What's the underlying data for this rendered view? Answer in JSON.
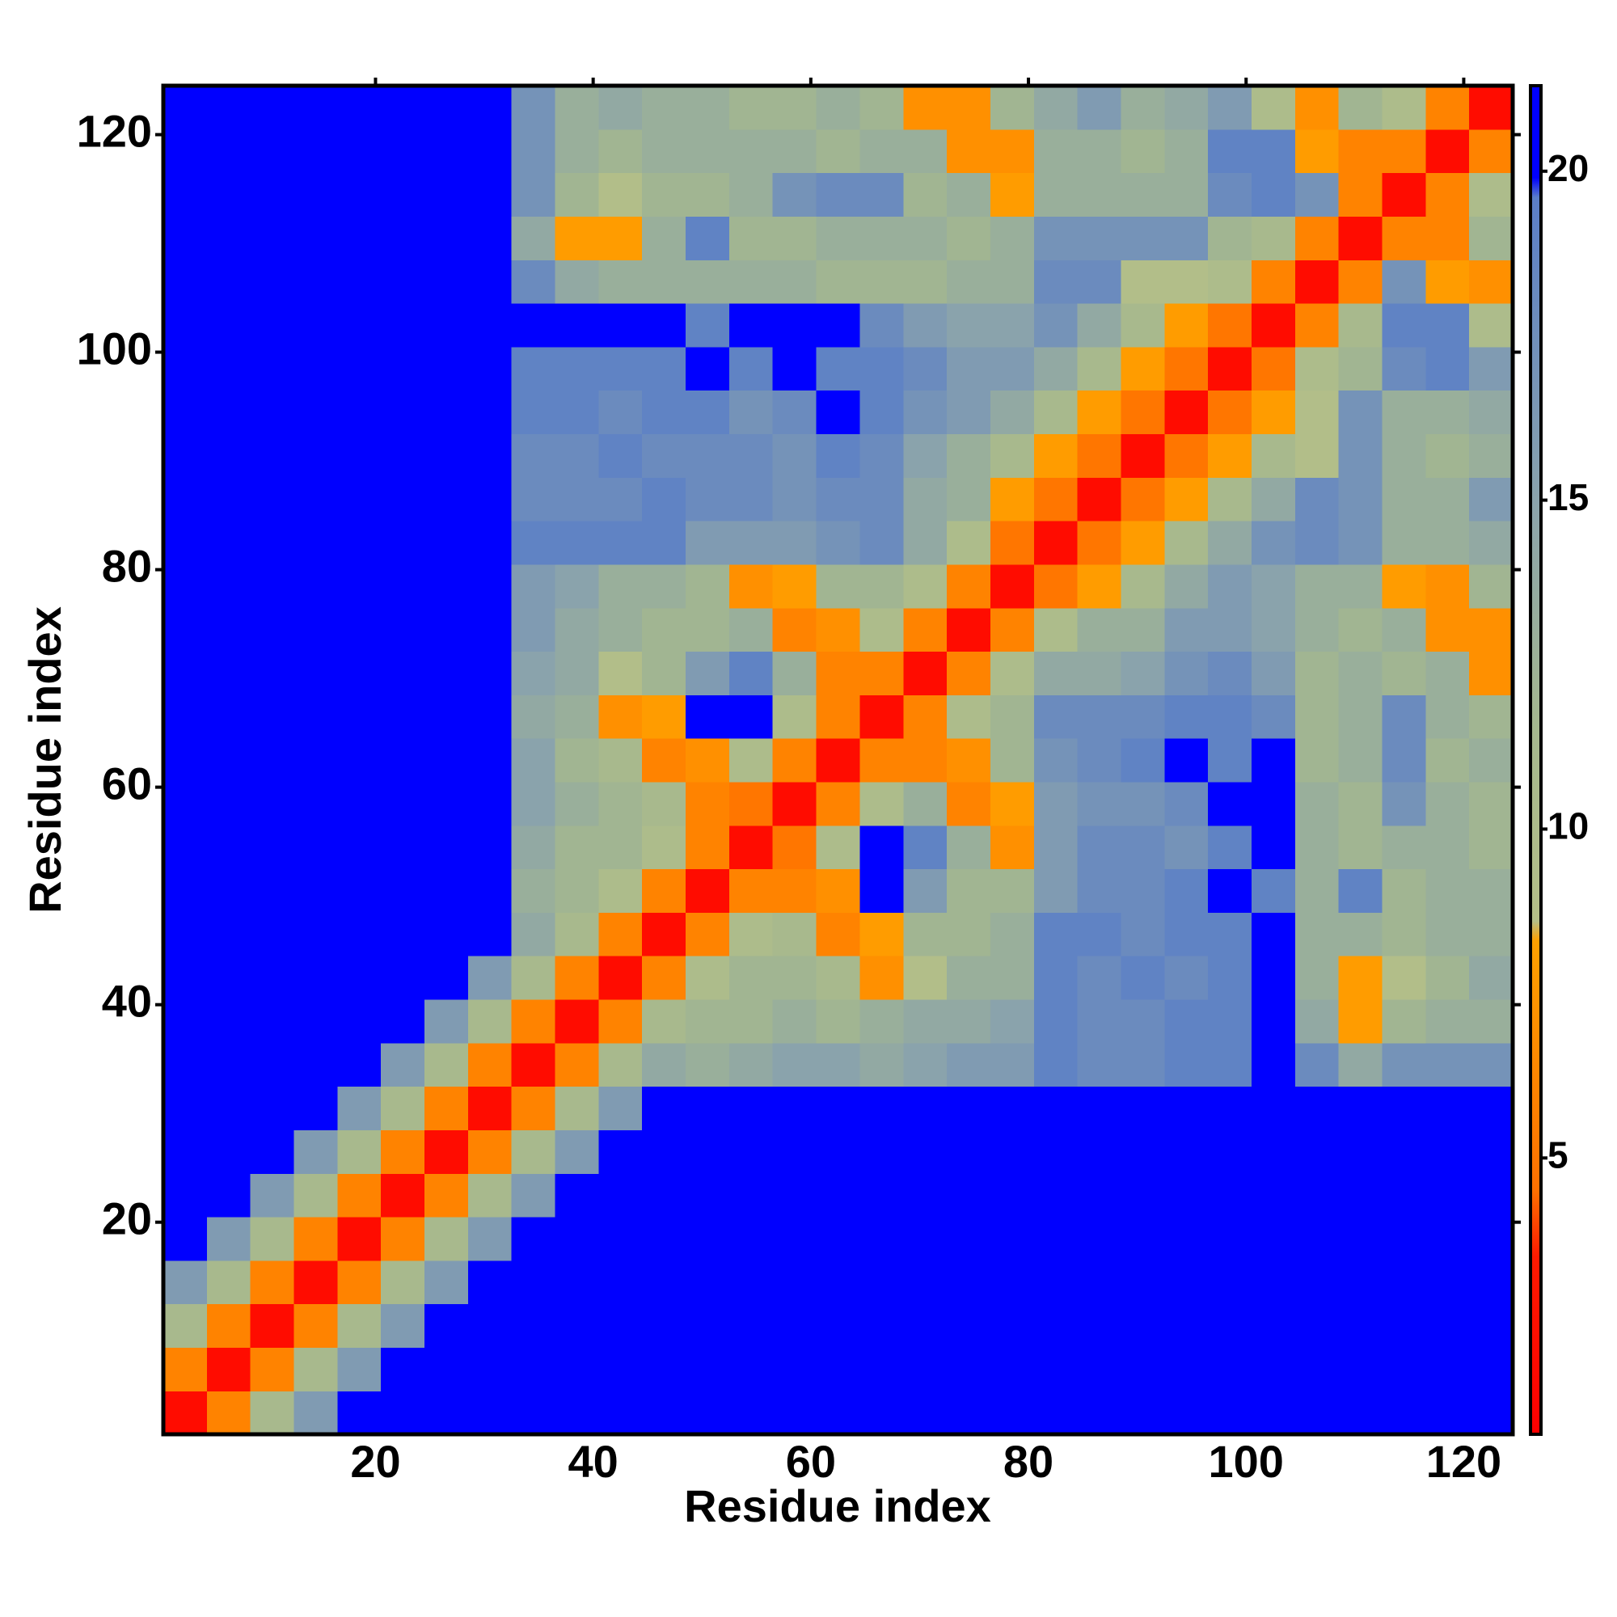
{
  "chart_data": {
    "type": "heatmap",
    "xlabel": "Residue index",
    "ylabel": "Residue index",
    "xbins": [
      0.5,
      4.5,
      8.5,
      12.5,
      16.5,
      20.5,
      24.5,
      28.5,
      32.5,
      36.5,
      40.5,
      44.5,
      48.5,
      52.5,
      56.5,
      60.5,
      64.5,
      68.5,
      72.5,
      76.5,
      80.5,
      84.5,
      88.5,
      92.5,
      96.5,
      100.5,
      104.5,
      108.5,
      112.5,
      116.5,
      120.5,
      124.5
    ],
    "ybins": [
      0.5,
      4.5,
      8.5,
      12.5,
      16.5,
      20.5,
      24.5,
      28.5,
      32.5,
      36.5,
      40.5,
      44.5,
      48.5,
      52.5,
      56.5,
      60.5,
      64.5,
      68.5,
      72.5,
      76.5,
      80.5,
      84.5,
      88.5,
      92.5,
      96.5,
      100.5,
      104.5,
      108.5,
      112.5,
      116.5,
      120.5,
      124.5
    ],
    "xlim": [
      0.5,
      124.5
    ],
    "ylim": [
      0.5,
      124.5
    ],
    "xticks": [
      20,
      40,
      60,
      80,
      100,
      120
    ],
    "yticks": [
      20,
      40,
      60,
      80,
      100,
      120
    ],
    "zlim": [
      0.8,
      21.3
    ],
    "zticks": [
      5,
      10,
      15,
      20
    ],
    "colorscale": [
      [
        0.8,
        "#ff0000"
      ],
      [
        3.5,
        "#ff1a00"
      ],
      [
        4.5,
        "#ff7000"
      ],
      [
        8.3,
        "#ffa000"
      ],
      [
        8.6,
        "#b4bf88"
      ],
      [
        11.5,
        "#a5b88e"
      ],
      [
        15,
        "#8aa3ac"
      ],
      [
        19.6,
        "#5a7ec8"
      ],
      [
        19.9,
        "#0000ff"
      ],
      [
        21.3,
        "#0000ff"
      ]
    ],
    "grid": false,
    "values": [
      [
        2,
        6,
        11,
        16,
        21,
        21,
        21,
        21,
        21,
        21,
        21,
        21,
        21,
        21,
        21,
        21,
        21,
        21,
        21,
        21,
        21,
        21,
        21,
        21,
        21,
        21,
        21,
        21,
        21,
        21,
        21
      ],
      [
        6,
        2,
        6,
        11,
        16,
        21,
        21,
        21,
        21,
        21,
        21,
        21,
        21,
        21,
        21,
        21,
        21,
        21,
        21,
        21,
        21,
        21,
        21,
        21,
        21,
        21,
        21,
        21,
        21,
        21,
        21
      ],
      [
        11,
        6,
        2,
        6,
        11,
        16,
        21,
        21,
        21,
        21,
        21,
        21,
        21,
        21,
        21,
        21,
        21,
        21,
        21,
        21,
        21,
        21,
        21,
        21,
        21,
        21,
        21,
        21,
        21,
        21,
        21
      ],
      [
        16,
        11,
        6,
        2,
        6,
        11,
        16,
        21,
        21,
        21,
        21,
        21,
        21,
        21,
        21,
        21,
        21,
        21,
        21,
        21,
        21,
        21,
        21,
        21,
        21,
        21,
        21,
        21,
        21,
        21,
        21
      ],
      [
        21,
        16,
        11,
        6,
        2,
        6,
        11,
        16,
        21,
        21,
        21,
        21,
        21,
        21,
        21,
        21,
        21,
        21,
        21,
        21,
        21,
        21,
        21,
        21,
        21,
        21,
        21,
        21,
        21,
        21,
        21
      ],
      [
        21,
        21,
        16,
        11,
        6,
        2,
        6,
        11,
        16,
        21,
        21,
        21,
        21,
        21,
        21,
        21,
        21,
        21,
        21,
        21,
        21,
        21,
        21,
        21,
        21,
        21,
        21,
        21,
        21,
        21,
        21
      ],
      [
        21,
        21,
        21,
        16,
        11,
        6,
        2,
        6,
        11,
        16,
        21,
        21,
        21,
        21,
        21,
        21,
        21,
        21,
        21,
        21,
        21,
        21,
        21,
        21,
        21,
        21,
        21,
        21,
        21,
        21,
        21
      ],
      [
        21,
        21,
        21,
        21,
        16,
        11,
        6,
        2,
        6,
        11,
        16,
        21,
        21,
        21,
        21,
        21,
        21,
        21,
        21,
        21,
        21,
        21,
        21,
        21,
        21,
        21,
        21,
        21,
        21,
        21,
        21
      ],
      [
        21,
        21,
        21,
        21,
        21,
        16,
        11,
        6,
        2,
        6,
        11,
        14,
        13,
        14,
        15,
        15,
        14,
        15,
        16,
        16,
        19,
        18,
        18,
        19,
        19,
        21,
        18,
        14,
        17,
        17,
        17
      ],
      [
        21,
        21,
        21,
        21,
        21,
        21,
        16,
        11,
        6,
        2,
        6,
        11,
        12,
        12,
        13,
        12,
        13,
        14,
        14,
        15,
        19,
        18,
        18,
        19,
        19,
        21,
        14,
        8,
        12,
        13,
        13
      ],
      [
        21,
        21,
        21,
        21,
        21,
        21,
        21,
        16,
        11,
        6,
        2,
        6,
        10,
        12,
        12,
        11,
        7,
        9,
        13,
        13,
        19,
        18,
        19,
        18,
        19,
        20,
        13,
        8,
        9,
        12,
        14
      ],
      [
        21,
        21,
        21,
        21,
        21,
        21,
        21,
        21,
        14,
        11,
        6,
        2,
        6,
        10,
        11,
        6,
        8,
        12,
        12,
        13,
        19,
        19,
        18,
        19,
        19,
        20,
        13,
        13,
        12,
        13,
        13
      ],
      [
        21,
        21,
        21,
        21,
        21,
        21,
        21,
        21,
        13,
        12,
        10,
        6,
        2,
        6,
        6,
        7,
        20,
        16,
        12,
        12,
        16,
        18,
        18,
        19,
        20,
        19,
        13,
        19,
        12,
        13,
        13
      ],
      [
        21,
        21,
        21,
        21,
        21,
        21,
        21,
        21,
        14,
        12,
        12,
        10,
        6,
        2,
        5,
        10,
        20,
        19,
        13,
        7,
        16,
        18,
        18,
        17,
        19,
        20,
        13,
        12,
        13,
        13,
        12
      ],
      [
        21,
        21,
        21,
        21,
        21,
        21,
        21,
        21,
        15,
        13,
        12,
        11,
        6,
        5,
        2,
        6,
        10,
        13,
        6,
        8,
        16,
        17,
        17,
        18,
        20,
        20,
        13,
        12,
        17,
        13,
        12
      ],
      [
        21,
        21,
        21,
        21,
        21,
        21,
        21,
        21,
        15,
        12,
        11,
        6,
        7,
        10,
        6,
        2,
        6,
        6,
        7,
        12,
        17,
        18,
        19,
        20,
        19,
        20,
        12,
        13,
        18,
        12,
        13
      ],
      [
        21,
        21,
        21,
        21,
        21,
        21,
        21,
        21,
        14,
        13,
        7,
        8,
        20,
        20,
        10,
        6,
        2,
        6,
        10,
        12,
        18,
        18,
        18,
        19,
        19,
        18,
        12,
        13,
        18,
        13,
        12
      ],
      [
        21,
        21,
        21,
        21,
        21,
        21,
        21,
        21,
        15,
        14,
        9,
        12,
        16,
        19,
        13,
        6,
        6,
        2,
        6,
        10,
        14,
        14,
        15,
        17,
        18,
        16,
        12,
        13,
        12,
        13,
        7
      ],
      [
        21,
        21,
        21,
        21,
        21,
        21,
        21,
        21,
        16,
        14,
        13,
        12,
        12,
        13,
        6,
        7,
        10,
        6,
        2,
        6,
        10,
        13,
        13,
        16,
        16,
        15,
        13,
        12,
        13,
        7,
        7
      ],
      [
        21,
        21,
        21,
        21,
        21,
        21,
        21,
        21,
        16,
        15,
        13,
        13,
        12,
        7,
        8,
        12,
        12,
        10,
        6,
        2,
        5,
        8,
        11,
        14,
        16,
        15,
        13,
        13,
        8,
        7,
        12
      ],
      [
        21,
        21,
        21,
        21,
        21,
        21,
        21,
        21,
        19,
        19,
        19,
        19,
        16,
        16,
        16,
        17,
        18,
        14,
        10,
        5,
        2,
        5,
        8,
        11,
        14,
        17,
        18,
        17,
        13,
        13,
        14
      ],
      [
        21,
        21,
        21,
        21,
        21,
        21,
        21,
        21,
        18,
        18,
        18,
        19,
        18,
        18,
        17,
        18,
        18,
        14,
        13,
        8,
        5,
        2,
        5,
        8,
        11,
        14,
        18,
        17,
        13,
        13,
        16
      ],
      [
        21,
        21,
        21,
        21,
        21,
        21,
        21,
        21,
        18,
        18,
        19,
        18,
        18,
        18,
        17,
        19,
        18,
        15,
        13,
        11,
        8,
        5,
        2,
        5,
        8,
        11,
        9,
        17,
        13,
        12,
        13
      ],
      [
        21,
        21,
        21,
        21,
        21,
        21,
        21,
        21,
        19,
        19,
        18,
        19,
        19,
        17,
        18,
        20,
        19,
        17,
        16,
        14,
        11,
        8,
        5,
        2,
        5,
        8,
        9,
        17,
        13,
        13,
        14
      ],
      [
        21,
        21,
        21,
        21,
        21,
        21,
        21,
        21,
        19,
        19,
        19,
        19,
        20,
        19,
        20,
        19,
        19,
        18,
        16,
        16,
        14,
        11,
        8,
        5,
        2,
        5,
        10,
        12,
        18,
        19,
        16
      ],
      [
        21,
        21,
        21,
        21,
        21,
        21,
        21,
        21,
        21,
        21,
        20,
        20,
        19,
        20,
        20,
        20,
        18,
        16,
        15,
        15,
        17,
        14,
        11,
        8,
        5,
        2,
        6,
        11,
        19,
        19,
        10
      ],
      [
        21,
        21,
        21,
        21,
        21,
        21,
        21,
        21,
        18,
        14,
        13,
        13,
        13,
        13,
        13,
        12,
        12,
        12,
        13,
        13,
        18,
        18,
        9,
        9,
        10,
        6,
        2,
        6,
        17,
        8,
        7
      ],
      [
        21,
        21,
        21,
        21,
        21,
        21,
        21,
        21,
        14,
        8,
        8,
        13,
        19,
        12,
        12,
        13,
        13,
        13,
        12,
        13,
        17,
        17,
        17,
        17,
        12,
        11,
        6,
        2,
        6,
        6,
        12
      ],
      [
        21,
        21,
        21,
        21,
        21,
        21,
        21,
        21,
        17,
        12,
        9,
        12,
        12,
        13,
        17,
        18,
        18,
        12,
        13,
        8,
        13,
        13,
        13,
        13,
        18,
        19,
        17,
        6,
        2,
        6,
        10
      ],
      [
        21,
        21,
        21,
        21,
        21,
        21,
        21,
        21,
        17,
        13,
        12,
        13,
        13,
        13,
        13,
        12,
        13,
        13,
        7,
        7,
        13,
        13,
        12,
        13,
        19,
        19,
        8,
        6,
        6,
        2,
        6
      ],
      [
        21,
        21,
        21,
        21,
        21,
        21,
        21,
        21,
        17,
        13,
        14,
        13,
        13,
        12,
        12,
        13,
        12,
        7,
        7,
        12,
        14,
        16,
        13,
        14,
        16,
        10,
        7,
        12,
        10,
        6,
        2
      ]
    ]
  }
}
